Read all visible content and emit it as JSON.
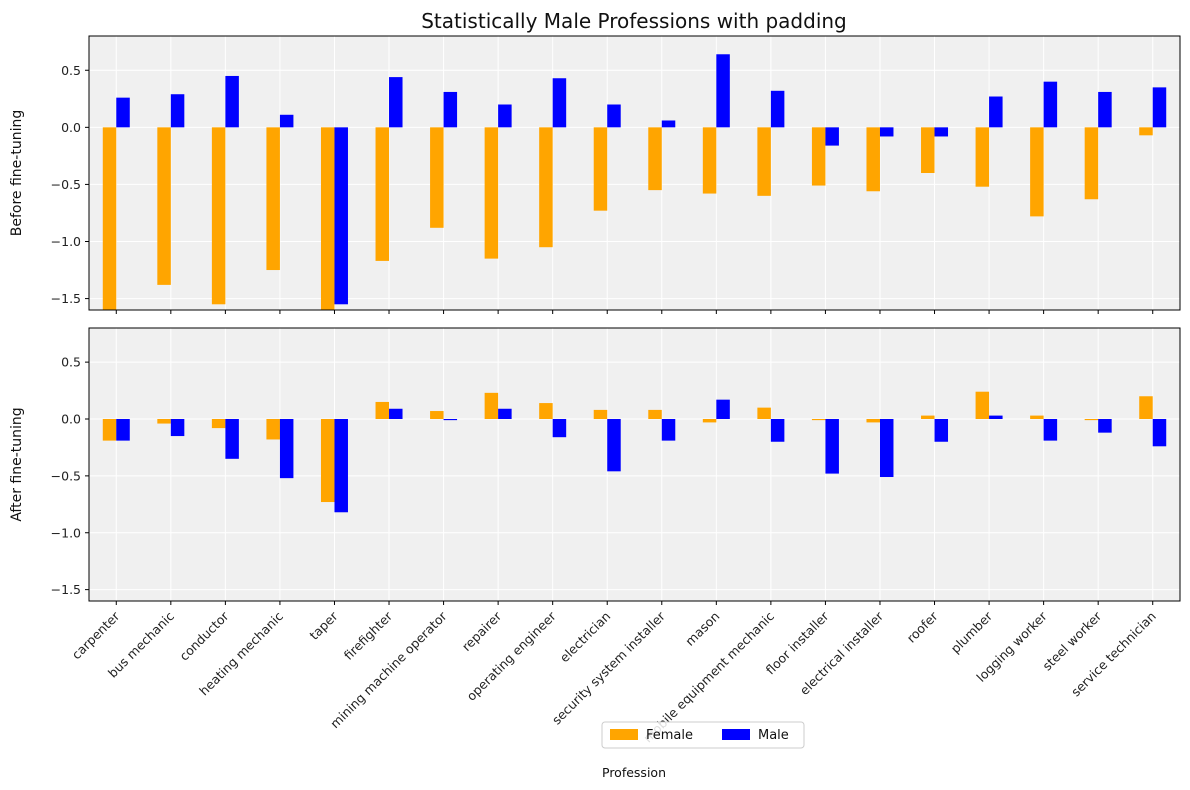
{
  "chart_data": {
    "type": "bar",
    "title": "Statistically Male Professions with padding",
    "xlabel": "Profession",
    "ylim": [
      -1.6,
      0.8
    ],
    "yticks": [
      -1.5,
      -1.0,
      -0.5,
      0.0,
      0.5
    ],
    "ytick_labels": [
      "−1.5",
      "−1.0",
      "−0.5",
      "0.0",
      "0.5"
    ],
    "grid": true,
    "legend_placement": "bottom-center",
    "colors": {
      "Female": "#ffa500",
      "Male": "#0000ff",
      "panel_bg": "#f0f0f0",
      "grid": "#ffffff"
    },
    "categories": [
      "carpenter",
      "bus mechanic",
      "conductor",
      "heating mechanic",
      "taper",
      "firefighter",
      "mining machine operator",
      "repairer",
      "operating engineer",
      "electrician",
      "security system installer",
      "mason",
      "mobile equipment mechanic",
      "floor installer",
      "electrical installer",
      "roofer",
      "plumber",
      "logging worker",
      "steel worker",
      "service technician"
    ],
    "panels": [
      {
        "ylabel": "Before fine-tuning",
        "series": [
          {
            "name": "Female",
            "values": [
              -1.6,
              -1.38,
              -1.55,
              -1.25,
              -1.6,
              -1.17,
              -0.88,
              -1.15,
              -1.05,
              -0.73,
              -0.55,
              -0.58,
              -0.6,
              -0.51,
              -0.56,
              -0.4,
              -0.52,
              -0.78,
              -0.63,
              -0.07
            ]
          },
          {
            "name": "Male",
            "values": [
              0.26,
              0.29,
              0.45,
              0.11,
              -1.55,
              0.44,
              0.31,
              0.2,
              0.43,
              0.2,
              0.06,
              0.64,
              0.32,
              -0.16,
              -0.08,
              -0.08,
              0.27,
              0.4,
              0.31,
              0.35
            ]
          }
        ]
      },
      {
        "ylabel": "After fine-tuning",
        "series": [
          {
            "name": "Female",
            "values": [
              -0.19,
              -0.04,
              -0.08,
              -0.18,
              -0.73,
              0.15,
              0.07,
              0.23,
              0.14,
              0.08,
              0.08,
              -0.03,
              0.1,
              -0.01,
              -0.03,
              0.03,
              0.24,
              0.03,
              -0.01,
              0.2
            ]
          },
          {
            "name": "Male",
            "values": [
              -0.19,
              -0.15,
              -0.35,
              -0.52,
              -0.82,
              0.09,
              -0.01,
              0.09,
              -0.16,
              -0.46,
              -0.19,
              0.17,
              -0.2,
              -0.48,
              -0.51,
              -0.2,
              0.03,
              -0.19,
              -0.12,
              -0.24
            ]
          }
        ]
      }
    ]
  }
}
